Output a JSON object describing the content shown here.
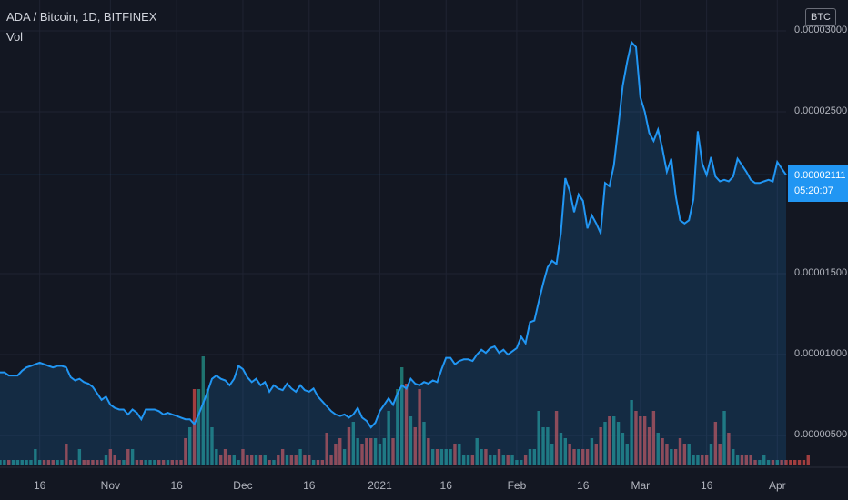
{
  "header": {
    "title": "ADA / Bitcoin, 1D, BITFINEX",
    "volume_label": "Vol"
  },
  "currency_badge": "BTC",
  "price_scale": {
    "labels": [
      "0.00003000",
      "0.00002500",
      "0.00001500",
      "0.00001000",
      "0.00000500"
    ],
    "values": [
      3e-05,
      2.5e-05,
      1.5e-05,
      1e-05,
      5e-06
    ]
  },
  "current_price": {
    "value": "0.00002111",
    "countdown": "05:20:07"
  },
  "time_axis": [
    {
      "label": "16",
      "index": 9
    },
    {
      "label": "Nov",
      "index": 25
    },
    {
      "label": "16",
      "index": 40
    },
    {
      "label": "Dec",
      "index": 55
    },
    {
      "label": "16",
      "index": 70
    },
    {
      "label": "2021",
      "index": 86
    },
    {
      "label": "16",
      "index": 101
    },
    {
      "label": "Feb",
      "index": 117
    },
    {
      "label": "16",
      "index": 132
    },
    {
      "label": "Mar",
      "index": 145
    },
    {
      "label": "16",
      "index": 160
    },
    {
      "label": "Apr",
      "index": 176
    }
  ],
  "colors": {
    "background": "#131722",
    "line": "#2196f3",
    "volume_up": "#26a69a",
    "volume_down": "#ef5350",
    "grid": "#1f2332"
  },
  "chart_data": {
    "type": "area",
    "title": "ADA / Bitcoin, 1D, BITFINEX",
    "ylim": [
      3.4e-06,
      3e-05
    ],
    "x_unit": "daily bars, index 0 = first visible day",
    "price": [
      8.9e-06,
      8.9e-06,
      8.7e-06,
      8.7e-06,
      8.7e-06,
      9e-06,
      9.2e-06,
      9.3e-06,
      9.4e-06,
      9.5e-06,
      9.4e-06,
      9.3e-06,
      9.2e-06,
      9.3e-06,
      9.3e-06,
      9.2e-06,
      8.6e-06,
      8.4e-06,
      8.5e-06,
      8.3e-06,
      8.2e-06,
      8e-06,
      7.6e-06,
      7.2e-06,
      7.4e-06,
      6.9e-06,
      6.7e-06,
      6.6e-06,
      6.6e-06,
      6.3e-06,
      6.6e-06,
      6.4e-06,
      6e-06,
      6.6e-06,
      6.6e-06,
      6.6e-06,
      6.5e-06,
      6.3e-06,
      6.4e-06,
      6.3e-06,
      6.2e-06,
      6.1e-06,
      6e-06,
      6e-06,
      5.7e-06,
      6.3e-06,
      7e-06,
      7.7e-06,
      8.5e-06,
      8.7e-06,
      8.5e-06,
      8.4e-06,
      8.1e-06,
      8.5e-06,
      9.3e-06,
      9.1e-06,
      8.6e-06,
      8.3e-06,
      8.5e-06,
      8.1e-06,
      8.3e-06,
      7.7e-06,
      8.1e-06,
      7.9e-06,
      7.8e-06,
      8.2e-06,
      7.9e-06,
      7.7e-06,
      8.1e-06,
      7.8e-06,
      7.7e-06,
      7.9e-06,
      7.4e-06,
      7.1e-06,
      6.8e-06,
      6.5e-06,
      6.3e-06,
      6.2e-06,
      6.3e-06,
      6.1e-06,
      6.3e-06,
      6.7e-06,
      6.1e-06,
      5.9e-06,
      5.5e-06,
      5.8e-06,
      6.5e-06,
      6.9e-06,
      7.3e-06,
      6.9e-06,
      7.6e-06,
      8.1e-06,
      7.9e-06,
      8.5e-06,
      8.2e-06,
      8.1e-06,
      8.3e-06,
      8.2e-06,
      8.4e-06,
      8.3e-06,
      9.1e-06,
      9.8e-06,
      9.8e-06,
      9.4e-06,
      9.6e-06,
      9.7e-06,
      9.7e-06,
      9.6e-06,
      1e-05,
      1.03e-05,
      1.01e-05,
      1.04e-05,
      1.05e-05,
      1.01e-05,
      1.03e-05,
      1e-05,
      1.02e-05,
      1.04e-05,
      1.11e-05,
      1.07e-05,
      1.2e-05,
      1.21e-05,
      1.33e-05,
      1.44e-05,
      1.54e-05,
      1.58e-05,
      1.56e-05,
      1.75e-05,
      2.09e-05,
      2.01e-05,
      1.88e-05,
      1.99e-05,
      1.95e-05,
      1.78e-05,
      1.86e-05,
      1.81e-05,
      1.75e-05,
      2.06e-05,
      2.04e-05,
      2.17e-05,
      2.41e-05,
      2.66e-05,
      2.81e-05,
      2.93e-05,
      2.9e-05,
      2.59e-05,
      2.5e-05,
      2.37e-05,
      2.32e-05,
      2.39e-05,
      2.27e-05,
      2.13e-05,
      2.21e-05,
      1.98e-05,
      1.83e-05,
      1.81e-05,
      1.83e-05,
      1.96e-05,
      2.38e-05,
      2.18e-05,
      2.11e-05,
      2.22e-05,
      2.1e-05,
      2.07e-05,
      2.08e-05,
      2.07e-05,
      2.1e-05,
      2.21e-05,
      2.17e-05,
      2.13e-05,
      2.08e-05,
      2.06e-05,
      2.06e-05,
      2.07e-05,
      2.08e-05,
      2.07e-05,
      2.19e-05,
      2.15e-05,
      2.11e-05
    ],
    "volume": [
      1,
      1,
      1,
      1,
      1,
      1,
      1,
      1,
      1,
      1,
      1,
      1,
      1,
      1,
      1,
      1,
      1,
      1,
      1,
      1,
      1,
      1,
      1,
      1,
      1,
      1,
      1,
      1,
      1,
      1,
      1,
      1,
      1,
      1,
      2,
      1,
      1,
      1,
      1,
      1,
      1,
      1,
      2,
      1,
      1,
      1,
      1,
      1,
      1,
      1,
      1,
      1,
      1,
      1,
      1,
      1,
      1,
      1,
      1,
      1,
      1,
      1,
      1,
      1,
      1,
      1,
      1,
      1,
      1,
      1,
      1,
      1,
      1,
      1,
      1,
      1,
      1,
      1,
      1,
      1,
      1,
      1,
      1,
      1,
      1,
      1,
      1,
      1,
      1,
      1,
      1,
      1,
      1,
      1,
      1,
      1,
      1,
      1,
      1,
      1,
      1,
      1,
      1,
      1,
      1,
      1,
      1,
      1,
      1,
      1,
      1,
      1,
      1,
      1,
      1,
      1,
      1,
      1,
      1,
      1,
      1,
      1,
      1,
      1,
      1,
      1,
      1,
      1,
      1,
      1,
      1,
      1,
      1,
      1,
      1,
      1,
      1,
      1,
      1,
      1,
      1,
      1,
      1,
      1,
      1,
      1,
      1,
      1,
      1,
      1,
      1,
      1,
      1,
      1,
      1,
      1,
      1,
      1,
      1,
      1,
      1,
      1,
      1,
      1,
      1,
      1,
      1,
      1,
      1,
      1,
      1,
      1,
      1,
      1,
      1,
      1,
      1,
      1,
      1,
      1
    ],
    "volume_heights": [
      1,
      1,
      1,
      1,
      1,
      1,
      1,
      1,
      3,
      1,
      1,
      1,
      1,
      1,
      1,
      4,
      1,
      1,
      3,
      1,
      1,
      1,
      1,
      1,
      2,
      3,
      2,
      1,
      1,
      3,
      3,
      1,
      1,
      1,
      1,
      1,
      1,
      1,
      1,
      1,
      1,
      1,
      5,
      7,
      14,
      14,
      20,
      14,
      7,
      3,
      2,
      3,
      2,
      2,
      1,
      3,
      2,
      2,
      2,
      2,
      2,
      1,
      1,
      2,
      3,
      2,
      2,
      2,
      3,
      2,
      2,
      1,
      1,
      1,
      6,
      2,
      4,
      5,
      3,
      7,
      8,
      5,
      4,
      5,
      5,
      5,
      4,
      5,
      10,
      5,
      14,
      18,
      15,
      9,
      7,
      14,
      8,
      5,
      3,
      3,
      3,
      3,
      3,
      4,
      4,
      2,
      2,
      2,
      5,
      3,
      3,
      2,
      2,
      3,
      2,
      2,
      2,
      1,
      1,
      2,
      3,
      3,
      10,
      7,
      7,
      4,
      10,
      6,
      5,
      4,
      3,
      3,
      3,
      3,
      5,
      4,
      7,
      8,
      9,
      9,
      8,
      6,
      4,
      12,
      10,
      9,
      9,
      7,
      10,
      6,
      5,
      4,
      3,
      3,
      5,
      4,
      4,
      2,
      2,
      2,
      2,
      4,
      8,
      4,
      10,
      6,
      3,
      2,
      2,
      2,
      2,
      1,
      1,
      2,
      1,
      1,
      1,
      1,
      1,
      1,
      1,
      1,
      1,
      2
    ]
  }
}
